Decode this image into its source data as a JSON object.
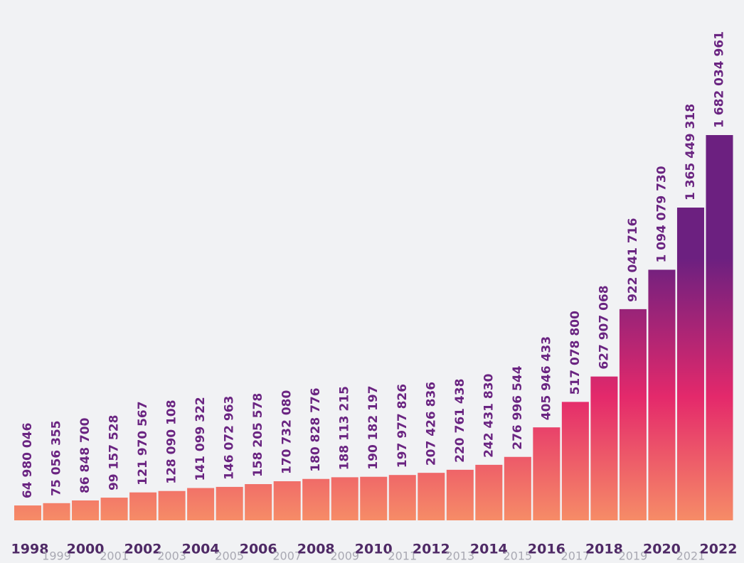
{
  "chart_data": {
    "type": "bar",
    "categories": [
      "1998",
      "1999",
      "2000",
      "2001",
      "2002",
      "2003",
      "2004",
      "2005",
      "2006",
      "2007",
      "2008",
      "2009",
      "2010",
      "2011",
      "2012",
      "2013",
      "2014",
      "2015",
      "2016",
      "2017",
      "2018",
      "2019",
      "2020",
      "2021",
      "2022"
    ],
    "values": [
      64980046,
      75056355,
      86848700,
      99157528,
      121970567,
      128090108,
      141099322,
      146072963,
      158205578,
      170732080,
      180828776,
      188113215,
      190182197,
      197977826,
      207426836,
      220761438,
      242431830,
      276996544,
      405946433,
      517078800,
      627907068,
      922041716,
      1094079730,
      1365449318,
      1682034961
    ],
    "value_labels": [
      "64 980 046",
      "75 056 355",
      "86 848 700",
      "99 157 528",
      "121 970 567",
      "128 090 108",
      "141 099 322",
      "146 072 963",
      "158 205 578",
      "170 732 080",
      "180 828 776",
      "188 113 215",
      "190 182 197",
      "197 977 826",
      "207 426 836",
      "220 761 438",
      "242 431 830",
      "276 996 544",
      "405 946 433",
      "517 078 800",
      "627 907 068",
      "922 041 716",
      "1 094 079 730",
      "1 365 449 318",
      "1 682 034 961"
    ],
    "gradient": [
      "#f68c67",
      "#e4296b",
      "#6c2080"
    ]
  }
}
